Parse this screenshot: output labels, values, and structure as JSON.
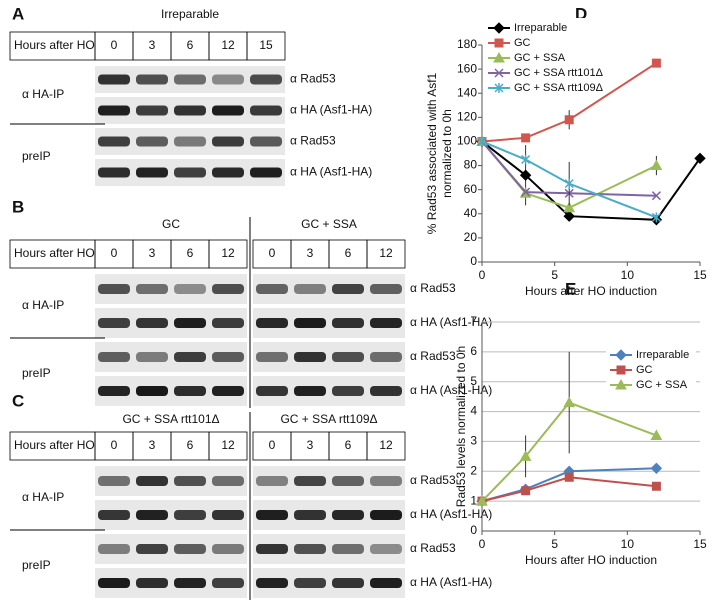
{
  "panels": [
    {
      "letter": "A",
      "header_label": "Hours after HO",
      "conditions": [
        {
          "name": "Irreparable",
          "timepoints": [
            "0",
            "3",
            "6",
            "12",
            "15"
          ]
        }
      ],
      "groups": [
        {
          "label": "α HA-IP",
          "antibodies": [
            "α Rad53",
            "α HA (Asf1-HA)"
          ]
        },
        {
          "label": "preIP",
          "antibodies": [
            "α Rad53",
            "α HA (Asf1-HA)"
          ]
        }
      ]
    },
    {
      "letter": "B",
      "header_label": "Hours after HO",
      "conditions": [
        {
          "name": "GC",
          "timepoints": [
            "0",
            "3",
            "6",
            "12"
          ]
        },
        {
          "name": "GC + SSA",
          "timepoints": [
            "0",
            "3",
            "6",
            "12"
          ]
        }
      ],
      "groups": [
        {
          "label": "α HA-IP",
          "antibodies": [
            "α Rad53",
            "α HA (Asf1-HA)"
          ]
        },
        {
          "label": "preIP",
          "antibodies": [
            "α Rad53",
            "α HA (Asf1-HA)"
          ]
        }
      ]
    },
    {
      "letter": "C",
      "header_label": "Hours after HO",
      "conditions": [
        {
          "name": "GC + SSA rtt101Δ",
          "timepoints": [
            "0",
            "3",
            "6",
            "12"
          ]
        },
        {
          "name": "GC + SSA rtt109Δ",
          "timepoints": [
            "0",
            "3",
            "6",
            "12"
          ]
        }
      ],
      "groups": [
        {
          "label": "α HA-IP",
          "antibodies": [
            "α Rad53",
            "α HA (Asf1-HA)"
          ]
        },
        {
          "label": "preIP",
          "antibodies": [
            "α Rad53",
            "α HA (Asf1-HA)"
          ]
        }
      ]
    }
  ],
  "chart_data": [
    {
      "type": "line",
      "letter": "D",
      "xlabel": "Hours after HO induction",
      "ylabel": [
        "% Rad53 associated with Asf1",
        "normalized to 0h"
      ],
      "x": [
        0,
        3,
        6,
        12,
        15
      ],
      "xlim": [
        0,
        15
      ],
      "xticks": [
        0,
        5,
        10,
        15
      ],
      "ylim": [
        0,
        180
      ],
      "yticks": [
        0,
        20,
        40,
        60,
        80,
        100,
        120,
        140,
        160,
        180
      ],
      "grid": false,
      "legend": "upper left",
      "series": [
        {
          "name": "Irreparable",
          "color": "#000000",
          "marker": "diamond",
          "values": [
            100,
            72,
            38,
            35,
            86
          ],
          "errors": [
            null,
            25,
            null,
            null,
            null
          ]
        },
        {
          "name": "GC",
          "color": "#d0574f",
          "marker": "square",
          "values": [
            100,
            103,
            118,
            165,
            null
          ],
          "errors": [
            null,
            null,
            8,
            null,
            null
          ]
        },
        {
          "name": "GC + SSA",
          "color": "#9bbb59",
          "marker": "triangle",
          "values": [
            100,
            57,
            45,
            80,
            null
          ],
          "errors": [
            null,
            null,
            null,
            8,
            null
          ]
        },
        {
          "name": "GC + SSA rtt101Δ",
          "color": "#8064a2",
          "marker": "x",
          "values": [
            100,
            58,
            57,
            55,
            null
          ],
          "errors": [
            null,
            null,
            null,
            null,
            null
          ]
        },
        {
          "name": "GC + SSA rtt109Δ",
          "color": "#4bacc6",
          "marker": "star",
          "values": [
            100,
            85,
            65,
            37,
            null
          ],
          "errors": [
            null,
            null,
            18,
            null,
            null
          ]
        }
      ]
    },
    {
      "type": "line",
      "letter": "E",
      "xlabel": "Hours after HO induction",
      "ylabel": [
        "Rad53 levels normalized to 0h"
      ],
      "x": [
        0,
        3,
        6,
        12
      ],
      "xlim": [
        0,
        15
      ],
      "xticks": [
        0,
        5,
        10,
        15
      ],
      "ylim": [
        0,
        7
      ],
      "yticks": [
        0,
        1,
        2,
        3,
        4,
        5,
        6,
        7
      ],
      "grid": true,
      "legend": "upper right",
      "series": [
        {
          "name": "Irreparable",
          "color": "#4f81bd",
          "marker": "diamond",
          "values": [
            1,
            1.4,
            2.0,
            2.1
          ],
          "errors": [
            null,
            null,
            null,
            null
          ]
        },
        {
          "name": "GC",
          "color": "#c0504d",
          "marker": "square",
          "values": [
            1,
            1.35,
            1.8,
            1.5
          ],
          "errors": [
            null,
            null,
            null,
            null
          ]
        },
        {
          "name": "GC + SSA",
          "color": "#9bbb59",
          "marker": "triangle",
          "values": [
            1,
            2.5,
            4.3,
            3.2
          ],
          "errors": [
            null,
            0.7,
            1.7,
            null
          ]
        }
      ]
    }
  ]
}
